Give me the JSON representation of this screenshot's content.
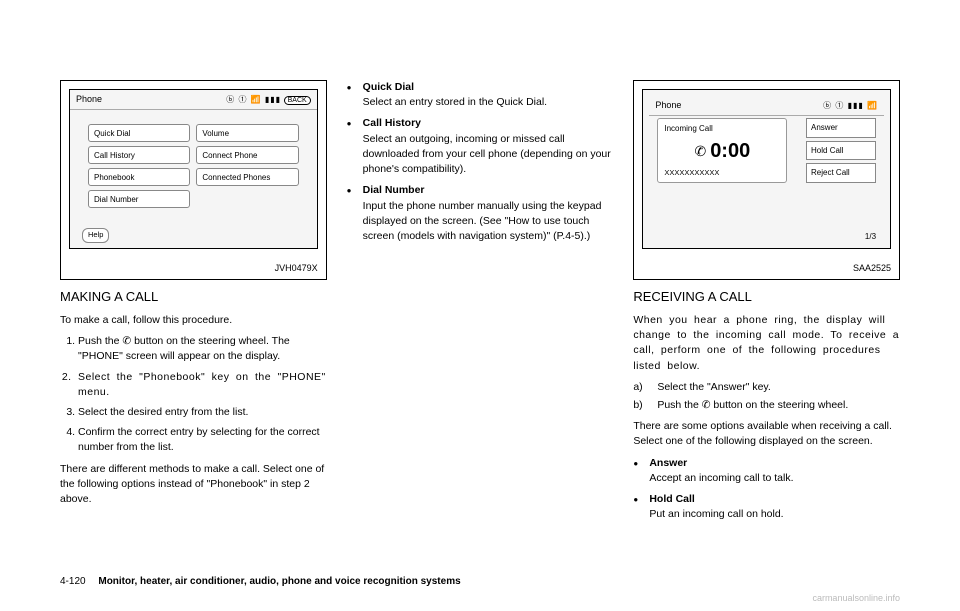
{
  "col1": {
    "figure": {
      "title": "Phone",
      "back": "BACK",
      "status": "ⓑ ① 📶 ▮▮▮",
      "menu": [
        "Quick Dial",
        "Volume",
        "Call History",
        "Connect Phone",
        "Phonebook",
        "Connected Phones",
        "Dial Number",
        ""
      ],
      "help": "Help",
      "id": "JVH0479X"
    },
    "heading": "MAKING A CALL",
    "intro": "To make a call, follow this procedure.",
    "steps": [
      "Push the ✆ button on the steering wheel. The \"PHONE\" screen will appear on the display.",
      "Select the \"Phonebook\" key on the \"PHONE\" menu.",
      "Select the desired entry from the list.",
      "Confirm the correct entry by selecting for the correct number from the list."
    ],
    "outro": "There are different methods to make a call. Select one of the following options instead of \"Phonebook\" in step 2 above."
  },
  "col2": {
    "items": [
      {
        "title": "Quick Dial",
        "body": "Select an entry stored in the Quick Dial."
      },
      {
        "title": "Call History",
        "body": "Select an outgoing, incoming or missed call downloaded from your cell phone (depending on your phone's compatibility)."
      },
      {
        "title": "Dial Number",
        "body": "Input the phone number manually using the keypad displayed on the screen. (See \"How to use touch screen (models with navigation system)\" (P.4-5).)"
      }
    ]
  },
  "col3": {
    "figure": {
      "title": "Phone",
      "status": "ⓑ ① ▮▮▮ 📶",
      "incoming_label": "Incoming Call",
      "time": "0:00",
      "number": "XXXXXXXXXXX",
      "actions": [
        "Answer",
        "Hold Call",
        "Reject Call"
      ],
      "page": "1/3",
      "id": "SAA2525"
    },
    "heading": "RECEIVING A CALL",
    "p1": "When you hear a phone ring, the display will change to the incoming call mode. To receive a call, perform one of the following procedures listed below.",
    "sub": [
      {
        "letter": "a)",
        "text": "Select the \"Answer\" key."
      },
      {
        "letter": "b)",
        "text": "Push the ✆ button on the steering wheel."
      }
    ],
    "p2": "There are some options available when receiving a call. Select one of the following displayed on the screen.",
    "items": [
      {
        "title": "Answer",
        "body": "Accept an incoming call to talk."
      },
      {
        "title": "Hold Call",
        "body": "Put an incoming call on hold."
      }
    ]
  },
  "footer": {
    "page": "4-120",
    "section": "Monitor, heater, air conditioner, audio, phone and voice recognition systems"
  },
  "watermark": "carmanualsonline.info"
}
